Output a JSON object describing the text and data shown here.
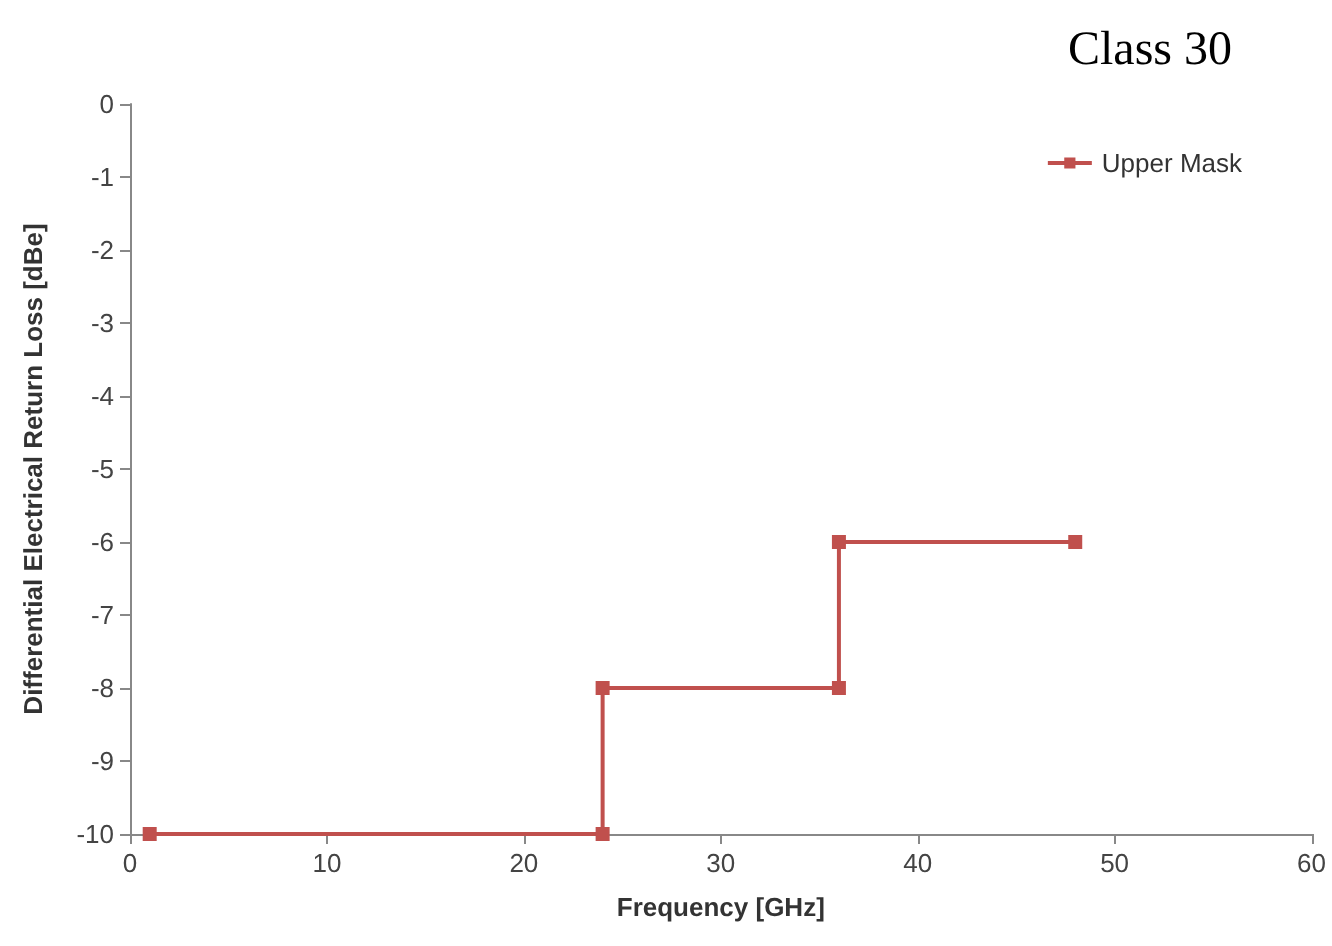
{
  "chart_data": {
    "type": "line",
    "title": "Class 30",
    "xlabel": "Frequency [GHz]",
    "ylabel": "Differential Electrical Return Loss [dBe]",
    "series": [
      {
        "name": "Upper Mask",
        "color": "#c0504d",
        "x": [
          1,
          24,
          24,
          36,
          36,
          48
        ],
        "values": [
          -10,
          -10,
          -8,
          -8,
          -6,
          -6
        ]
      }
    ],
    "xlim": [
      0,
      60
    ],
    "xticks": [
      0,
      10,
      20,
      30,
      40,
      50,
      60
    ],
    "ylim": [
      -10,
      0
    ],
    "yticks": [
      -10,
      -9,
      -8,
      -7,
      -6,
      -5,
      -4,
      -3,
      -2,
      -1,
      0
    ],
    "grid": false,
    "legend": "top right",
    "marker": "square",
    "line_style": "solid"
  }
}
